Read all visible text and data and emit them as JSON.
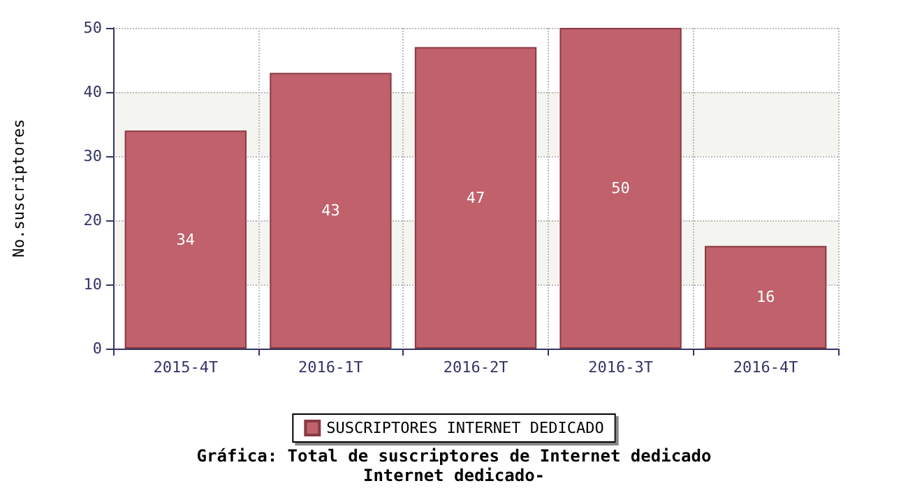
{
  "chart_data": {
    "type": "bar",
    "title": "Gráfica: Total de suscriptores de Internet dedicado",
    "subtitle": "Internet dedicado-",
    "ylabel": "No.suscriptores",
    "categories": [
      "2015-4T",
      "2016-1T",
      "2016-2T",
      "2016-3T",
      "2016-4T"
    ],
    "series": [
      {
        "name": "SUSCRIPTORES INTERNET DEDICADO",
        "color": "#c0616b",
        "values": [
          34,
          43,
          47,
          50,
          16
        ]
      }
    ],
    "ylim": [
      0,
      50
    ],
    "yticks": [
      0,
      10,
      20,
      30,
      40,
      50
    ],
    "grid": true,
    "legend": "bottom",
    "data_labels": true
  }
}
